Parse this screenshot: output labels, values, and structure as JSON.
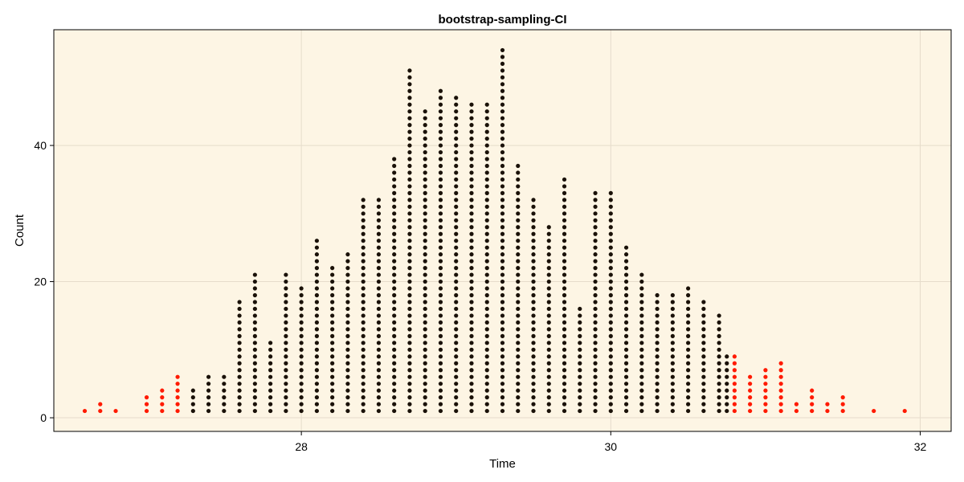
{
  "chart_data": {
    "type": "scatter",
    "title": "bootstrap-sampling-CI",
    "xlabel": "Time",
    "ylabel": "Count",
    "xlim": [
      26.4,
      32.2
    ],
    "ylim": [
      -2,
      57
    ],
    "xticks": [
      28,
      30,
      32
    ],
    "yticks": [
      0,
      20,
      40
    ],
    "grid": true,
    "background_color": "#fdf5e4",
    "grid_color": "#e6dccb",
    "series": [
      {
        "color": "#ff1a00",
        "columns": [
          {
            "x": 26.6,
            "count": 1
          },
          {
            "x": 26.7,
            "count": 2
          },
          {
            "x": 26.8,
            "count": 1
          },
          {
            "x": 27.0,
            "count": 3
          },
          {
            "x": 27.1,
            "count": 4
          },
          {
            "x": 27.2,
            "count": 6
          },
          {
            "x": 30.8,
            "count": 9
          },
          {
            "x": 30.9,
            "count": 6
          },
          {
            "x": 31.0,
            "count": 7
          },
          {
            "x": 31.1,
            "count": 8
          },
          {
            "x": 31.2,
            "count": 2
          },
          {
            "x": 31.3,
            "count": 4
          },
          {
            "x": 31.4,
            "count": 2
          },
          {
            "x": 31.5,
            "count": 3
          },
          {
            "x": 31.7,
            "count": 1
          },
          {
            "x": 31.9,
            "count": 1
          }
        ]
      },
      {
        "color": "#1a1108",
        "columns": [
          {
            "x": 27.3,
            "count": 4
          },
          {
            "x": 27.4,
            "count": 6
          },
          {
            "x": 27.5,
            "count": 6
          },
          {
            "x": 27.6,
            "count": 17
          },
          {
            "x": 27.7,
            "count": 21
          },
          {
            "x": 27.8,
            "count": 11
          },
          {
            "x": 27.9,
            "count": 21
          },
          {
            "x": 28.0,
            "count": 19
          },
          {
            "x": 28.1,
            "count": 26
          },
          {
            "x": 28.2,
            "count": 22
          },
          {
            "x": 28.3,
            "count": 24
          },
          {
            "x": 28.4,
            "count": 32
          },
          {
            "x": 28.5,
            "count": 32
          },
          {
            "x": 28.6,
            "count": 38
          },
          {
            "x": 28.7,
            "count": 51
          },
          {
            "x": 28.8,
            "count": 45
          },
          {
            "x": 28.9,
            "count": 48
          },
          {
            "x": 29.0,
            "count": 47
          },
          {
            "x": 29.1,
            "count": 46
          },
          {
            "x": 29.2,
            "count": 46
          },
          {
            "x": 29.3,
            "count": 54
          },
          {
            "x": 29.4,
            "count": 37
          },
          {
            "x": 29.5,
            "count": 32
          },
          {
            "x": 29.6,
            "count": 28
          },
          {
            "x": 29.7,
            "count": 35
          },
          {
            "x": 29.8,
            "count": 16
          },
          {
            "x": 29.9,
            "count": 33
          },
          {
            "x": 30.0,
            "count": 33
          },
          {
            "x": 30.1,
            "count": 25
          },
          {
            "x": 30.2,
            "count": 21
          },
          {
            "x": 30.3,
            "count": 18
          },
          {
            "x": 30.4,
            "count": 18
          },
          {
            "x": 30.5,
            "count": 19
          },
          {
            "x": 30.6,
            "count": 17
          },
          {
            "x": 30.7,
            "count": 15
          },
          {
            "x": 30.75,
            "count": 9
          }
        ]
      }
    ]
  }
}
